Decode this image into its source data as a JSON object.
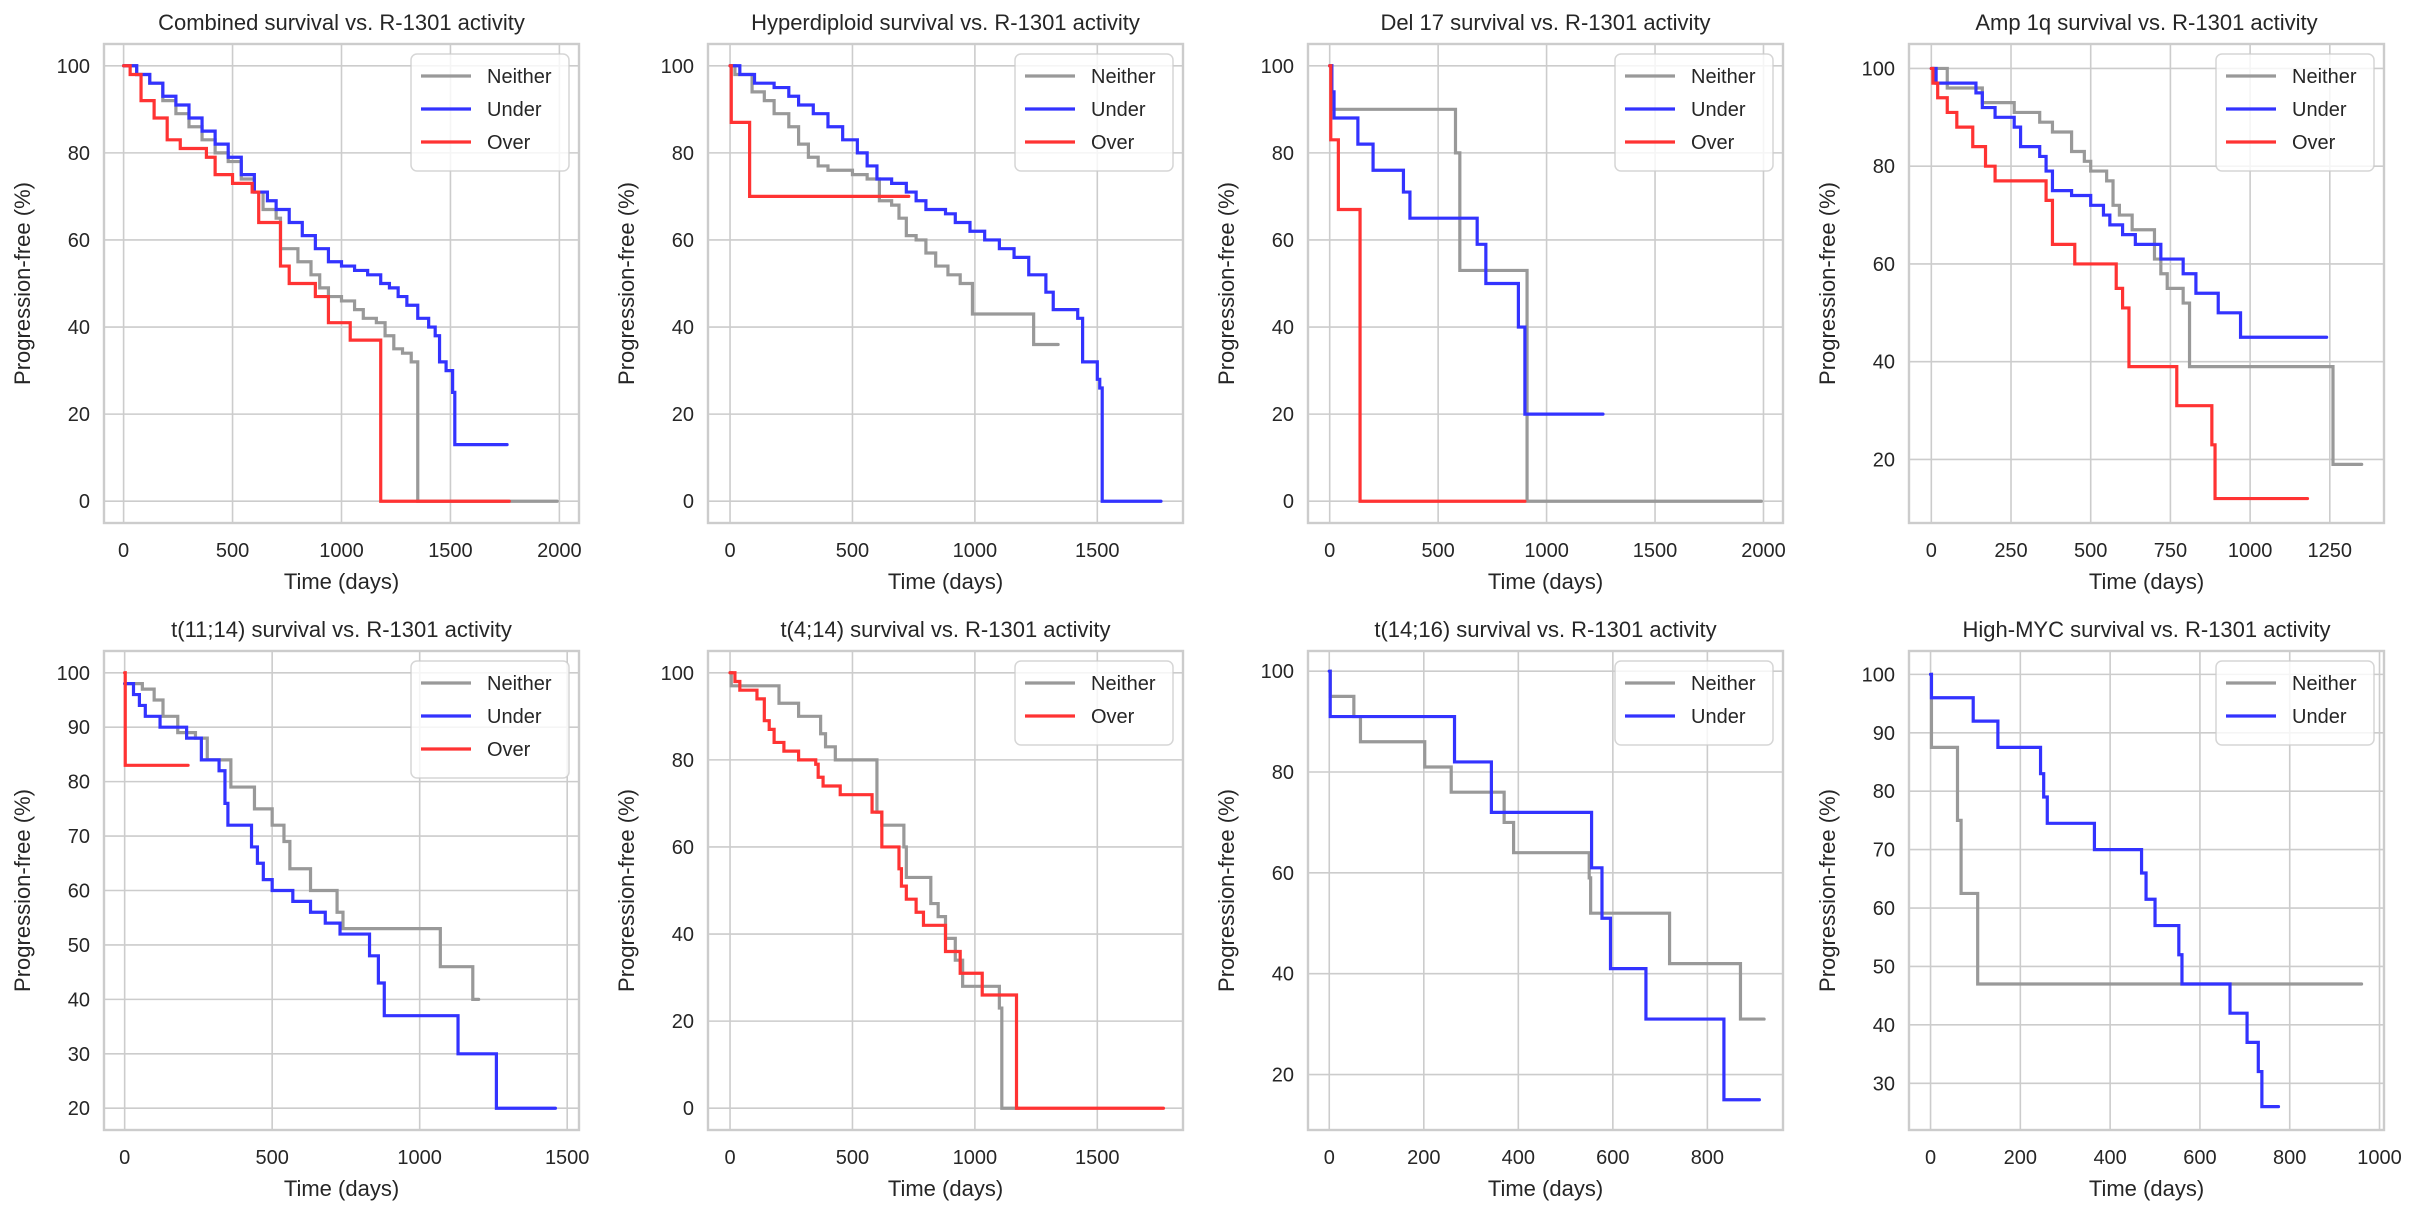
{
  "colors": {
    "Neither": "#999999",
    "Under": "#3333ff",
    "Over": "#ff3333"
  },
  "chart_data": [
    {
      "type": "line",
      "title": "Combined survival vs. R-1301 activity",
      "xlabel": "Time (days)",
      "ylabel": "Progression-free (%)",
      "xlim": [
        -90,
        2090
      ],
      "ylim": [
        -5,
        105
      ],
      "xticks": [
        0,
        500,
        1000,
        1500,
        2000
      ],
      "yticks": [
        0,
        20,
        40,
        60,
        80,
        100
      ],
      "grid": true,
      "legend": "top-right",
      "step": true,
      "series": [
        {
          "name": "Neither",
          "x": [
            0,
            60,
            120,
            180,
            240,
            300,
            360,
            420,
            480,
            540,
            600,
            640,
            700,
            720,
            760,
            800,
            860,
            900,
            940,
            1000,
            1060,
            1100,
            1160,
            1200,
            1240,
            1280,
            1320,
            1350,
            1350,
            1990
          ],
          "y": [
            100,
            98,
            96,
            92,
            89,
            86,
            83,
            80,
            78,
            74,
            71,
            67,
            65,
            58,
            58,
            55,
            52,
            49,
            47,
            46,
            44,
            42,
            41,
            38,
            35,
            34,
            32,
            31,
            0,
            0
          ]
        },
        {
          "name": "Under",
          "x": [
            0,
            60,
            120,
            180,
            240,
            300,
            360,
            420,
            480,
            540,
            600,
            660,
            700,
            760,
            820,
            880,
            940,
            1000,
            1060,
            1120,
            1180,
            1220,
            1260,
            1300,
            1350,
            1400,
            1430,
            1450,
            1480,
            1510,
            1520,
            1760
          ],
          "y": [
            100,
            98,
            96,
            93,
            91,
            88,
            85,
            82,
            79,
            75,
            71,
            69,
            67,
            64,
            61,
            58,
            55,
            54,
            53,
            52,
            50,
            49,
            47,
            45,
            42,
            40,
            38,
            32,
            30,
            25,
            13,
            13
          ]
        },
        {
          "name": "Over",
          "x": [
            0,
            30,
            80,
            140,
            200,
            260,
            380,
            420,
            500,
            590,
            620,
            700,
            720,
            760,
            880,
            940,
            1040,
            1180,
            1180,
            1770
          ],
          "y": [
            100,
            98,
            92,
            88,
            83,
            81,
            79,
            75,
            73,
            71,
            64,
            64,
            54,
            50,
            47,
            41,
            37,
            32,
            0,
            0
          ]
        }
      ]
    },
    {
      "type": "line",
      "title": "Hyperdiploid survival vs. R-1301 activity",
      "xlabel": "Time (days)",
      "ylabel": "Progression-free (%)",
      "xlim": [
        -90,
        1850
      ],
      "ylim": [
        -5,
        105
      ],
      "xticks": [
        0,
        500,
        1000,
        1500
      ],
      "yticks": [
        0,
        20,
        40,
        60,
        80,
        100
      ],
      "grid": true,
      "legend": "top-right",
      "step": true,
      "series": [
        {
          "name": "Neither",
          "x": [
            0,
            20,
            90,
            140,
            180,
            240,
            280,
            320,
            360,
            400,
            500,
            560,
            610,
            660,
            690,
            720,
            760,
            800,
            840,
            890,
            940,
            990,
            1240,
            1340
          ],
          "y": [
            100,
            98,
            94,
            92,
            89,
            86,
            82,
            79,
            77,
            76,
            75,
            74,
            69,
            68,
            65,
            61,
            60,
            57,
            54,
            52,
            50,
            43,
            36,
            36
          ]
        },
        {
          "name": "Under",
          "x": [
            0,
            40,
            100,
            180,
            240,
            280,
            340,
            400,
            460,
            520,
            560,
            600,
            660,
            720,
            760,
            800,
            880,
            920,
            980,
            1040,
            1100,
            1160,
            1220,
            1290,
            1320,
            1400,
            1420,
            1440,
            1500,
            1510,
            1520,
            1760
          ],
          "y": [
            100,
            98,
            96,
            95,
            93,
            91,
            89,
            86,
            83,
            80,
            77,
            74,
            73,
            71,
            69,
            67,
            66,
            64,
            62,
            60,
            58,
            56,
            52,
            48,
            44,
            44,
            42,
            32,
            28,
            26,
            0,
            0
          ]
        },
        {
          "name": "Over",
          "x": [
            0,
            5,
            80,
            730
          ],
          "y": [
            100,
            87,
            70,
            70
          ]
        }
      ]
    },
    {
      "type": "line",
      "title": "Del 17 survival vs. R-1301 activity",
      "xlabel": "Time (days)",
      "ylabel": "Progression-free (%)",
      "xlim": [
        -100,
        2090
      ],
      "ylim": [
        -5,
        105
      ],
      "xticks": [
        0,
        500,
        1000,
        1500,
        2000
      ],
      "yticks": [
        0,
        20,
        40,
        60,
        80,
        100
      ],
      "grid": true,
      "legend": "top-right",
      "step": true,
      "series": [
        {
          "name": "Neither",
          "x": [
            0,
            10,
            580,
            600,
            910,
            1990
          ],
          "y": [
            100,
            90,
            80,
            53,
            0,
            0
          ]
        },
        {
          "name": "Under",
          "x": [
            0,
            10,
            20,
            130,
            200,
            340,
            370,
            680,
            720,
            870,
            900,
            1260
          ],
          "y": [
            100,
            94,
            88,
            82,
            76,
            71,
            65,
            59,
            50,
            40,
            20,
            20
          ]
        },
        {
          "name": "Over",
          "x": [
            0,
            5,
            40,
            140,
            900
          ],
          "y": [
            100,
            83,
            67,
            0,
            0
          ]
        }
      ]
    },
    {
      "type": "line",
      "title": "Amp 1q survival vs. R-1301 activity",
      "xlabel": "Time (days)",
      "ylabel": "Progression-free (%)",
      "xlim": [
        -70,
        1420
      ],
      "ylim": [
        7,
        105
      ],
      "xticks": [
        0,
        250,
        500,
        750,
        1000,
        1250
      ],
      "yticks": [
        20,
        40,
        60,
        80,
        100
      ],
      "grid": true,
      "legend": "top-right",
      "step": true,
      "series": [
        {
          "name": "Neither",
          "x": [
            0,
            50,
            160,
            260,
            340,
            380,
            440,
            480,
            500,
            550,
            570,
            590,
            630,
            700,
            720,
            740,
            790,
            810,
            1260,
            1350
          ],
          "y": [
            100,
            96,
            93,
            91,
            89,
            87,
            83,
            81,
            79,
            77,
            72,
            70,
            67,
            61,
            58,
            55,
            52,
            39,
            19,
            19
          ]
        },
        {
          "name": "Under",
          "x": [
            0,
            15,
            140,
            160,
            200,
            260,
            280,
            340,
            360,
            380,
            440,
            500,
            540,
            560,
            600,
            640,
            720,
            790,
            830,
            900,
            970,
            1240
          ],
          "y": [
            100,
            97,
            95,
            92,
            90,
            88,
            84,
            82,
            79,
            75,
            74,
            72,
            70,
            68,
            66,
            64,
            61,
            58,
            54,
            50,
            45,
            45
          ]
        },
        {
          "name": "Over",
          "x": [
            0,
            5,
            20,
            50,
            80,
            130,
            170,
            200,
            360,
            380,
            450,
            580,
            600,
            620,
            770,
            880,
            890,
            1180
          ],
          "y": [
            100,
            97,
            94,
            91,
            88,
            84,
            80,
            77,
            73,
            64,
            60,
            55,
            51,
            39,
            31,
            23,
            12,
            12
          ]
        }
      ]
    },
    {
      "type": "line",
      "title": "t(11;14) survival vs. R-1301 activity",
      "xlabel": "Time (days)",
      "ylabel": "Progression-free (%)",
      "xlim": [
        -70,
        1540
      ],
      "ylim": [
        16,
        104
      ],
      "xticks": [
        0,
        500,
        1000,
        1500
      ],
      "yticks": [
        20,
        30,
        40,
        50,
        60,
        70,
        80,
        90,
        100
      ],
      "grid": true,
      "legend": "top-right",
      "step": true,
      "series": [
        {
          "name": "Neither",
          "x": [
            0,
            60,
            100,
            130,
            180,
            240,
            280,
            360,
            440,
            500,
            540,
            560,
            630,
            720,
            740,
            1070,
            1180,
            1200
          ],
          "y": [
            98,
            97,
            95,
            92,
            89,
            88,
            84,
            79,
            75,
            72,
            69,
            64,
            60,
            56,
            53,
            46,
            40,
            40
          ]
        },
        {
          "name": "Under",
          "x": [
            0,
            30,
            50,
            70,
            120,
            210,
            260,
            320,
            340,
            350,
            430,
            450,
            470,
            500,
            570,
            630,
            680,
            730,
            830,
            860,
            880,
            1130,
            1260,
            1460
          ],
          "y": [
            98,
            96,
            94,
            92,
            90,
            88,
            84,
            82,
            76,
            72,
            68,
            65,
            62,
            60,
            58,
            56,
            54,
            52,
            48,
            43,
            37,
            30,
            20,
            20
          ]
        },
        {
          "name": "Over",
          "x": [
            0,
            2,
            215
          ],
          "y": [
            100,
            83,
            83
          ]
        }
      ]
    },
    {
      "type": "line",
      "title": "t(4;14) survival vs. R-1301 activity",
      "xlabel": "Time (days)",
      "ylabel": "Progression-free (%)",
      "xlim": [
        -90,
        1850
      ],
      "ylim": [
        -5,
        105
      ],
      "xticks": [
        0,
        500,
        1000,
        1500
      ],
      "yticks": [
        0,
        20,
        40,
        60,
        80,
        100
      ],
      "grid": true,
      "legend": "top-right",
      "step": true,
      "series": [
        {
          "name": "Neither",
          "x": [
            0,
            5,
            200,
            280,
            370,
            390,
            430,
            600,
            620,
            710,
            720,
            820,
            850,
            880,
            920,
            950,
            1100,
            1110,
            1180
          ],
          "y": [
            100,
            97,
            93,
            90,
            86,
            83,
            80,
            68,
            65,
            60,
            53,
            47,
            44,
            39,
            34,
            28,
            23,
            0,
            0
          ]
        },
        {
          "name": "Over",
          "x": [
            0,
            20,
            40,
            110,
            140,
            160,
            180,
            220,
            280,
            350,
            360,
            380,
            450,
            580,
            620,
            690,
            700,
            720,
            760,
            790,
            880,
            940,
            1030,
            1170,
            1170,
            1770
          ],
          "y": [
            100,
            98,
            96,
            94,
            89,
            87,
            84,
            82,
            80,
            79,
            76,
            74,
            72,
            68,
            60,
            55,
            51,
            48,
            45,
            42,
            36,
            31,
            26,
            26,
            0,
            0
          ]
        }
      ]
    },
    {
      "type": "line",
      "title": "t(14;16) survival vs. R-1301 activity",
      "xlabel": "Time (days)",
      "ylabel": "Progression-free (%)",
      "xlim": [
        -45,
        960
      ],
      "ylim": [
        9,
        104
      ],
      "xticks": [
        0,
        200,
        400,
        600,
        800
      ],
      "yticks": [
        20,
        40,
        60,
        80,
        100
      ],
      "grid": true,
      "legend": "top-right",
      "step": true,
      "series": [
        {
          "name": "Neither",
          "x": [
            0,
            2,
            52,
            66,
            202,
            258,
            370,
            390,
            550,
            553,
            720,
            870,
            920
          ],
          "y": [
            100,
            95,
            91,
            86,
            81,
            76,
            70,
            64,
            59,
            52,
            42,
            31,
            31
          ]
        },
        {
          "name": "Under",
          "x": [
            0,
            2,
            265,
            343,
            555,
            577,
            595,
            670,
            835,
            910
          ],
          "y": [
            100,
            91,
            82,
            72,
            61,
            51,
            41,
            31,
            15,
            15
          ]
        }
      ]
    },
    {
      "type": "line",
      "title": "High-MYC survival vs. R-1301 activity",
      "xlabel": "Time (days)",
      "ylabel": "Progression-free (%)",
      "xlim": [
        -48,
        1010
      ],
      "ylim": [
        22,
        104
      ],
      "xticks": [
        0,
        200,
        400,
        600,
        800,
        1000
      ],
      "yticks": [
        30,
        40,
        50,
        60,
        70,
        80,
        90,
        100
      ],
      "grid": true,
      "legend": "top-right",
      "step": true,
      "series": [
        {
          "name": "Neither",
          "x": [
            0,
            2,
            60,
            68,
            105,
            960
          ],
          "y": [
            100,
            87.5,
            75,
            62.5,
            47,
            47
          ]
        },
        {
          "name": "Under",
          "x": [
            0,
            2,
            95,
            150,
            245,
            252,
            260,
            365,
            470,
            480,
            500,
            553,
            560,
            667,
            705,
            730,
            738,
            775
          ],
          "y": [
            100,
            96,
            92,
            87.5,
            83,
            79,
            74.5,
            70,
            66,
            61.5,
            57,
            52,
            47,
            42,
            37,
            32,
            26,
            26
          ]
        }
      ]
    }
  ]
}
